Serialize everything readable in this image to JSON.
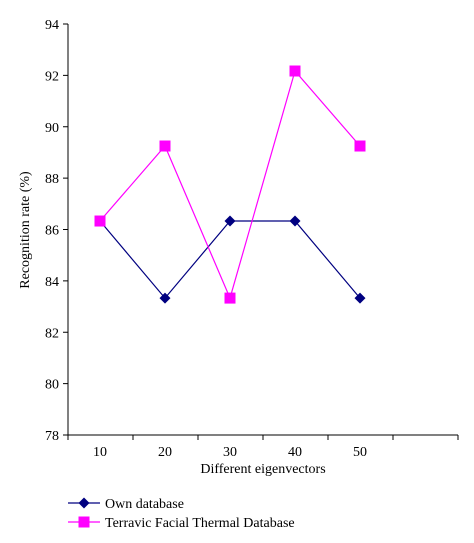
{
  "chart_data": {
    "type": "line",
    "xlabel": "Different eigenvectors",
    "ylabel": "Recognition rate (%)",
    "categories": [
      "10",
      "20",
      "30",
      "40",
      "50"
    ],
    "ylim": [
      78,
      94
    ],
    "yticks": [
      "78",
      "80",
      "82",
      "84",
      "86",
      "88",
      "90",
      "92",
      "94"
    ],
    "grid": false,
    "legend_position": "bottom",
    "series": [
      {
        "name": "Own database",
        "values": [
          86.33,
          83.33,
          86.33,
          86.33,
          83.33
        ],
        "color": "#000080",
        "marker": "diamond"
      },
      {
        "name": "Terravic Facial Thermal Database",
        "values": [
          86.33,
          89.25,
          83.33,
          92.17,
          89.25
        ],
        "color": "#ff00ff",
        "marker": "square"
      }
    ]
  }
}
